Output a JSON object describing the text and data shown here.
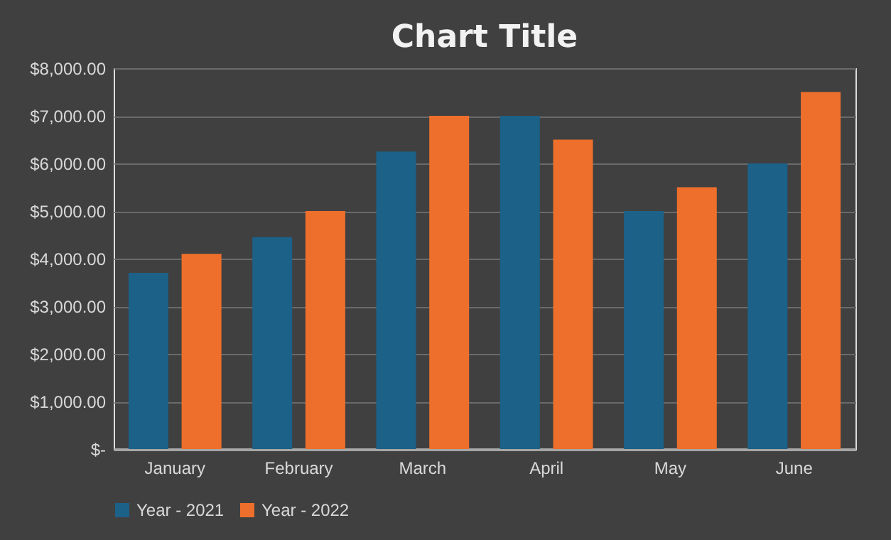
{
  "chart_data": {
    "type": "bar",
    "title": "Chart Title",
    "categories": [
      "January",
      "February",
      "March",
      "April",
      "May",
      "June"
    ],
    "series": [
      {
        "name": "Year - 2021",
        "color": "#1c6188",
        "values": [
          3700,
          4450,
          6250,
          7000,
          5000,
          6000
        ]
      },
      {
        "name": "Year - 2022",
        "color": "#ee6f2c",
        "values": [
          4100,
          5000,
          7000,
          6500,
          5500,
          7500
        ]
      }
    ],
    "ylim": [
      0,
      8000
    ],
    "yticks": [
      {
        "value": 0,
        "label": "$-"
      },
      {
        "value": 1000,
        "label": "$1,000.00"
      },
      {
        "value": 2000,
        "label": "$2,000.00"
      },
      {
        "value": 3000,
        "label": "$3,000.00"
      },
      {
        "value": 4000,
        "label": "$4,000.00"
      },
      {
        "value": 5000,
        "label": "$5,000.00"
      },
      {
        "value": 6000,
        "label": "$6,000.00"
      },
      {
        "value": 7000,
        "label": "$7,000.00"
      },
      {
        "value": 8000,
        "label": "$8,000.00"
      }
    ],
    "grid": "y",
    "legend": "bottom"
  }
}
